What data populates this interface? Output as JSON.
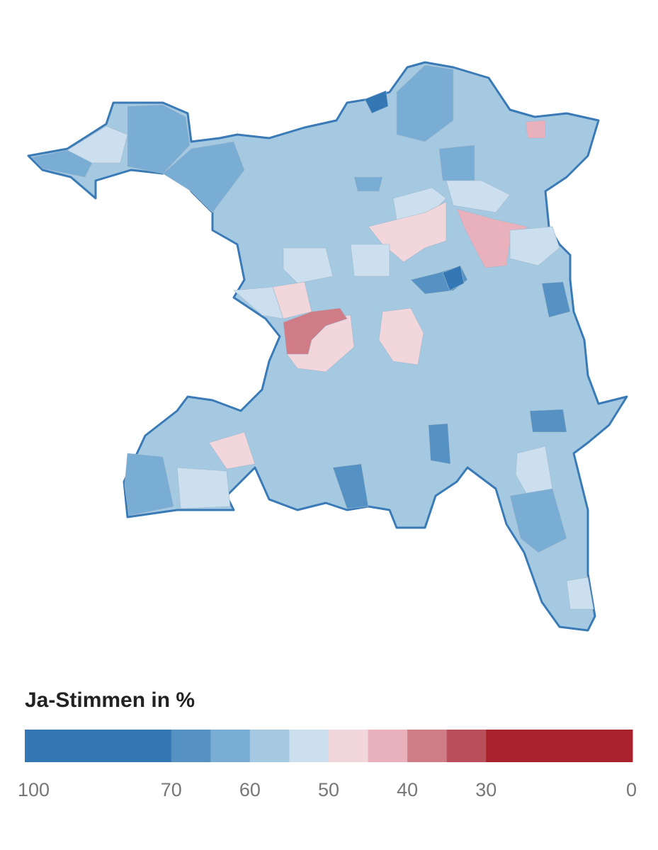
{
  "legend": {
    "title": "Ja-Stimmen in %",
    "breaks": [
      100,
      70,
      65,
      60,
      55,
      50,
      45,
      40,
      35,
      30,
      0
    ],
    "colors": [
      "#3477b5",
      "#5592c3",
      "#7aadd4",
      "#a6c9e2",
      "#cbdfee",
      "#f1d6dc",
      "#e8b1bb",
      "#d07c87",
      "#b94f5a",
      "#a8232b"
    ],
    "ticks": [
      100,
      70,
      60,
      50,
      40,
      30,
      0
    ]
  }
}
